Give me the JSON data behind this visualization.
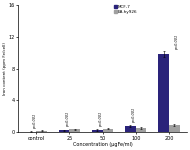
{
  "categories": [
    "control",
    "25",
    "50",
    "100",
    "200"
  ],
  "mcf7_values": [
    0.1,
    0.25,
    0.3,
    0.85,
    9.8
  ],
  "ea_values": [
    0.2,
    0.4,
    0.45,
    0.55,
    0.9
  ],
  "mcf7_errors": [
    0.04,
    0.06,
    0.07,
    0.12,
    0.35
  ],
  "ea_errors": [
    0.05,
    0.07,
    0.08,
    0.09,
    0.12
  ],
  "mcf7_color": "#2a237a",
  "ea_color": "#a0a0a0",
  "ylabel": "Iron content (ppm Fe/cell)",
  "xlabel": "Concentration (μgFe/ml)",
  "ylim": [
    0,
    16
  ],
  "yticks": [
    0,
    4,
    8,
    12,
    16
  ],
  "bar_width": 0.32,
  "legend_labels": [
    "MCF-7",
    "EA.hy926"
  ],
  "pvalue_label": "p<0.001",
  "background_color": "#ffffff"
}
